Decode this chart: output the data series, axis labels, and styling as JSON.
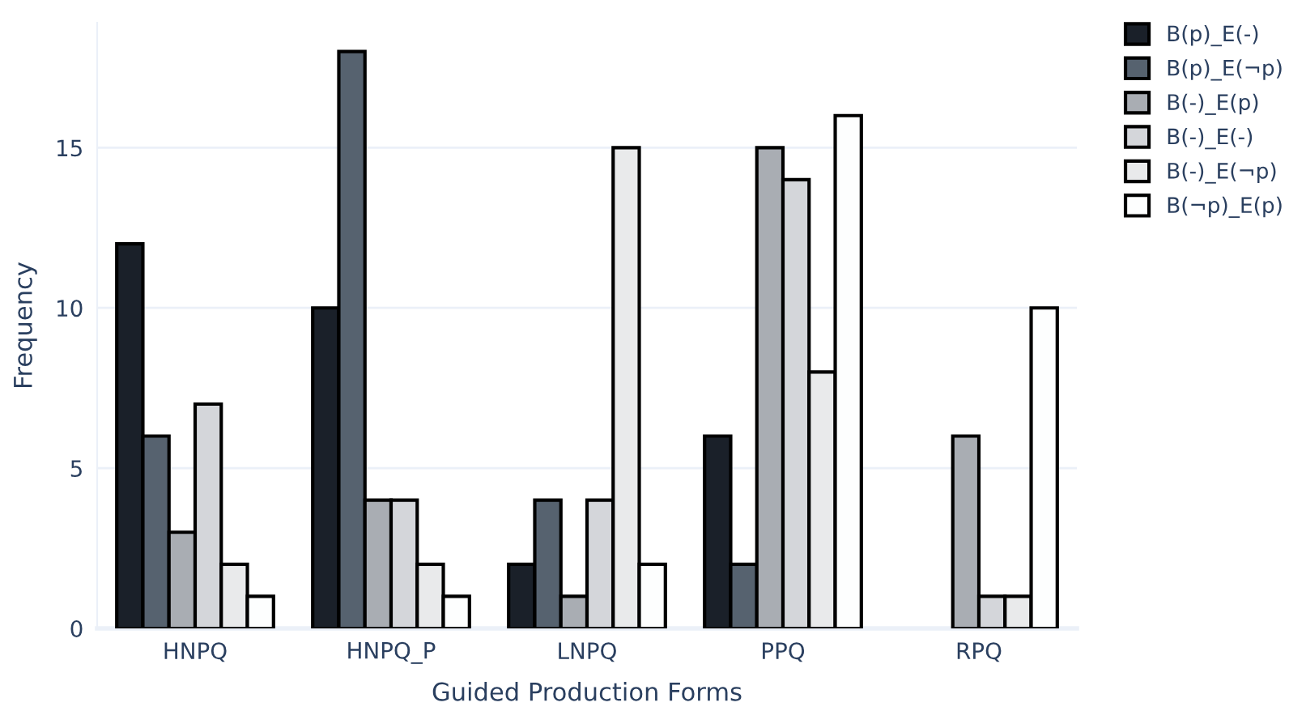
{
  "chart_data": {
    "type": "bar",
    "xlabel": "Guided Production Forms",
    "ylabel": "Frequency",
    "categories": [
      "HNPQ",
      "HNPQ_P",
      "LNPQ",
      "PPQ",
      "RPQ"
    ],
    "series": [
      {
        "name": "B(p)_E(-)",
        "color": "#1a2029",
        "values": [
          12,
          10,
          2,
          6,
          null
        ]
      },
      {
        "name": "B(p)_E(¬p)",
        "color": "#56626f",
        "values": [
          6,
          18,
          4,
          2,
          null
        ]
      },
      {
        "name": "B(-)_E(p)",
        "color": "#a9adb3",
        "values": [
          3,
          4,
          1,
          15,
          6
        ]
      },
      {
        "name": "B(-)_E(-)",
        "color": "#d4d6da",
        "values": [
          7,
          4,
          4,
          14,
          1
        ]
      },
      {
        "name": "B(-)_E(¬p)",
        "color": "#e9eaeb",
        "values": [
          2,
          2,
          15,
          8,
          1
        ]
      },
      {
        "name": "B(¬p)_E(p)",
        "color": "#fdfefe",
        "values": [
          1,
          1,
          2,
          16,
          10
        ]
      }
    ],
    "ylim": [
      0,
      18.9
    ],
    "yticks": [
      0,
      5,
      10,
      15
    ],
    "grid": "y",
    "legend": "top right"
  }
}
